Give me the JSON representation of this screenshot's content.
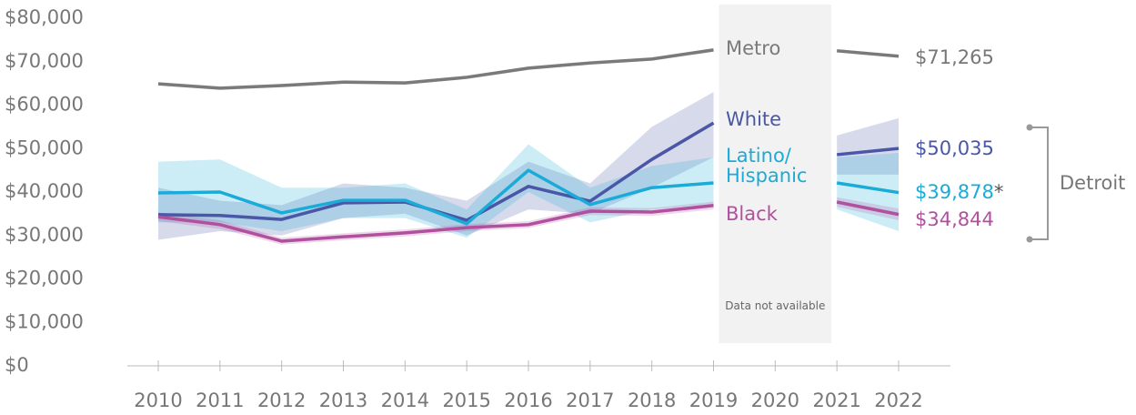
{
  "chart_data": {
    "type": "line",
    "x": [
      2010,
      2011,
      2012,
      2013,
      2014,
      2015,
      2016,
      2017,
      2018,
      2019,
      2020,
      2021,
      2022
    ],
    "xlim": [
      2010,
      2022
    ],
    "xticks": [
      2010,
      2011,
      2012,
      2013,
      2014,
      2015,
      2016,
      2017,
      2018,
      2019,
      2020,
      2021,
      2022
    ],
    "ylim": [
      0,
      80000
    ],
    "yticks": [
      {
        "value": 0,
        "label": "$0"
      },
      {
        "value": 10000,
        "label": "$10,000"
      },
      {
        "value": 20000,
        "label": "$20,000"
      },
      {
        "value": 30000,
        "label": "$30,000"
      },
      {
        "value": 40000,
        "label": "$40,000"
      },
      {
        "value": 50000,
        "label": "$50,000"
      },
      {
        "value": 60000,
        "label": "$60,000"
      },
      {
        "value": 70000,
        "label": "$70,000"
      },
      {
        "value": 80000,
        "label": "$80,000"
      }
    ],
    "series": [
      {
        "name": "Metro",
        "color": "#7a7a7a",
        "values": [
          64900,
          63900,
          64500,
          65300,
          65100,
          66400,
          68500,
          69700,
          70600,
          72700,
          null,
          72500,
          71265
        ],
        "lower": [
          64500,
          63500,
          64100,
          64900,
          64700,
          66000,
          68100,
          69300,
          70200,
          72300,
          null,
          72100,
          70900
        ],
        "upper": [
          65300,
          64300,
          64900,
          65700,
          65500,
          66800,
          68900,
          70100,
          71000,
          73100,
          null,
          72900,
          71600
        ],
        "value_labels": [
          null,
          null,
          null,
          null,
          null,
          null,
          null,
          null,
          null,
          null,
          null,
          null,
          "$71,265"
        ]
      },
      {
        "name": "White",
        "color": "#4a56a6",
        "values": [
          34800,
          34600,
          33700,
          37500,
          37700,
          33500,
          41300,
          37900,
          47500,
          55900,
          null,
          48600,
          50035
        ],
        "lower": [
          29000,
          31000,
          30000,
          34000,
          35000,
          30000,
          36000,
          35000,
          41000,
          48000,
          null,
          44000,
          44000
        ],
        "upper": [
          41000,
          38000,
          37000,
          42000,
          41000,
          38000,
          47000,
          42000,
          55000,
          63000,
          null,
          53000,
          57000
        ],
        "value_labels": [
          null,
          null,
          null,
          null,
          null,
          null,
          null,
          null,
          null,
          null,
          null,
          null,
          "$50,035"
        ]
      },
      {
        "name": "Latino/ Hispanic",
        "color": "#1aabd8",
        "values": [
          39800,
          40000,
          35200,
          38100,
          38100,
          32700,
          45000,
          37100,
          41000,
          42100,
          null,
          42100,
          39878
        ],
        "lower": [
          33000,
          33000,
          31000,
          34000,
          34000,
          29500,
          40000,
          33000,
          36000,
          37000,
          null,
          36000,
          31000
        ],
        "upper": [
          47000,
          47500,
          41000,
          41000,
          42000,
          36000,
          51000,
          41000,
          46000,
          48000,
          null,
          48000,
          49000
        ],
        "value_labels": [
          null,
          null,
          null,
          null,
          null,
          null,
          null,
          null,
          null,
          null,
          null,
          null,
          "$39,878"
        ],
        "note_mark": "*"
      },
      {
        "name": "Black",
        "color": "#b0509e",
        "values": [
          34300,
          32500,
          28700,
          29700,
          30600,
          31800,
          32500,
          35600,
          35400,
          36900,
          null,
          37700,
          34844
        ],
        "lower": [
          33300,
          31500,
          27900,
          28900,
          29800,
          31000,
          31700,
          34700,
          34500,
          36000,
          null,
          36600,
          33500
        ],
        "upper": [
          35300,
          33500,
          29500,
          30500,
          31400,
          32600,
          33300,
          36500,
          36300,
          37800,
          null,
          38800,
          36200
        ],
        "value_labels": [
          null,
          null,
          null,
          null,
          null,
          null,
          null,
          null,
          null,
          null,
          null,
          null,
          "$34,844"
        ]
      }
    ],
    "annotations": {
      "missing": "Data not available",
      "bracket": "Detroit"
    }
  }
}
